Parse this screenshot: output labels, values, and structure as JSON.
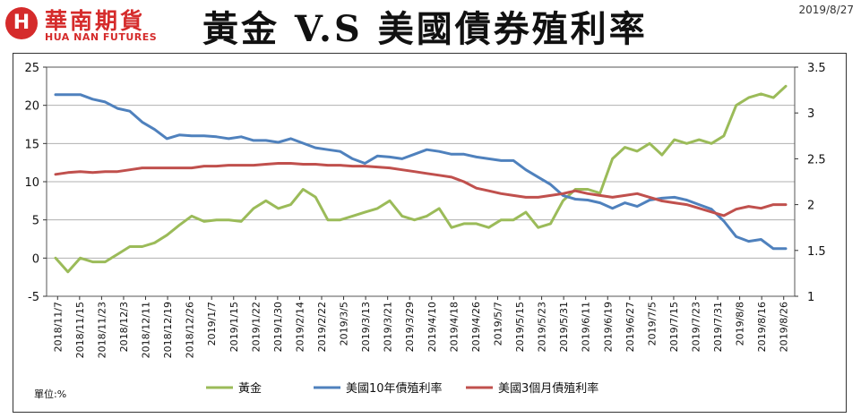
{
  "header": {
    "logo_mark": "H",
    "logo_zh": "華南期貨",
    "logo_en": "HUA NAN FUTURES",
    "title": "黃金 V.S 美國債券殖利率",
    "date": "2019/8/27"
  },
  "footer": {
    "unit_label": "單位:%"
  },
  "chart_data": {
    "type": "line",
    "title": "黃金 V.S 美國債券殖利率",
    "grid": true,
    "legend_position": "bottom",
    "y_left": {
      "min": -5,
      "max": 25,
      "ticks": [
        "-5",
        "0",
        "5",
        "10",
        "15",
        "20",
        "25"
      ]
    },
    "y_right": {
      "min": 1,
      "max": 3.5,
      "ticks": [
        "1",
        "1.5",
        "2",
        "2.5",
        "3",
        "3.5"
      ]
    },
    "x_ticks": [
      "2018/11/7",
      "2018/11/15",
      "2018/11/23",
      "2018/12/3",
      "2018/12/11",
      "2018/12/19",
      "2018/12/26",
      "2019/1/7",
      "2019/1/15",
      "2019/1/22",
      "2019/1/30",
      "2019/2/14",
      "2019/2/22",
      "2019/3/5",
      "2019/3/13",
      "2019/3/21",
      "2019/3/29",
      "2019/4/10",
      "2019/4/18",
      "2019/4/26",
      "2019/5/7",
      "2019/5/15",
      "2019/5/23",
      "2019/5/31",
      "2019/6/11",
      "2019/6/19",
      "2019/6/27",
      "2019/7/5",
      "2019/7/15",
      "2019/7/23",
      "2019/7/31",
      "2019/8/8",
      "2019/8/16",
      "2019/8/26"
    ],
    "series": [
      {
        "name": "黃金",
        "axis": "left",
        "color": "#9bbb59",
        "values": [
          0,
          -1.8,
          0,
          -0.5,
          -0.5,
          0.5,
          1.5,
          1.5,
          2,
          3,
          4.3,
          5.5,
          4.8,
          5,
          5,
          4.8,
          6.5,
          7.5,
          6.5,
          7,
          9,
          8,
          5,
          5,
          5.5,
          6,
          6.5,
          7.5,
          5.5,
          5,
          5.5,
          6.5,
          4,
          4.5,
          4.5,
          4,
          5,
          5,
          6,
          4,
          4.5,
          7.5,
          9,
          9,
          8.5,
          13,
          14.5,
          14,
          15,
          13.5,
          15.5,
          15,
          15.5,
          15,
          16,
          20,
          21,
          21.5,
          21,
          22.5
        ]
      },
      {
        "name": "美國10年債殖利率",
        "axis": "right",
        "color": "#4f81bd",
        "values": [
          3.2,
          3.2,
          3.2,
          3.15,
          3.12,
          3.05,
          3.02,
          2.9,
          2.82,
          2.72,
          2.76,
          2.75,
          2.75,
          2.74,
          2.72,
          2.74,
          2.7,
          2.7,
          2.68,
          2.72,
          2.67,
          2.62,
          2.6,
          2.58,
          2.5,
          2.45,
          2.53,
          2.52,
          2.5,
          2.55,
          2.6,
          2.58,
          2.55,
          2.55,
          2.52,
          2.5,
          2.48,
          2.48,
          2.38,
          2.3,
          2.22,
          2.1,
          2.06,
          2.05,
          2.02,
          1.96,
          2.02,
          1.98,
          2.05,
          2.07,
          2.08,
          2.05,
          2.0,
          1.95,
          1.82,
          1.65,
          1.6,
          1.62,
          1.52,
          1.52
        ]
      },
      {
        "name": "美國3個月債殖利率",
        "axis": "right",
        "color": "#c0504d",
        "values": [
          2.33,
          2.35,
          2.36,
          2.35,
          2.36,
          2.36,
          2.38,
          2.4,
          2.4,
          2.4,
          2.4,
          2.4,
          2.42,
          2.42,
          2.43,
          2.43,
          2.43,
          2.44,
          2.45,
          2.45,
          2.44,
          2.44,
          2.43,
          2.43,
          2.42,
          2.42,
          2.41,
          2.4,
          2.38,
          2.36,
          2.34,
          2.32,
          2.3,
          2.25,
          2.18,
          2.15,
          2.12,
          2.1,
          2.08,
          2.08,
          2.1,
          2.12,
          2.15,
          2.12,
          2.1,
          2.08,
          2.1,
          2.12,
          2.08,
          2.04,
          2.02,
          2.0,
          1.96,
          1.92,
          1.88,
          1.95,
          1.98,
          1.96,
          2.0,
          2.0
        ]
      }
    ]
  }
}
